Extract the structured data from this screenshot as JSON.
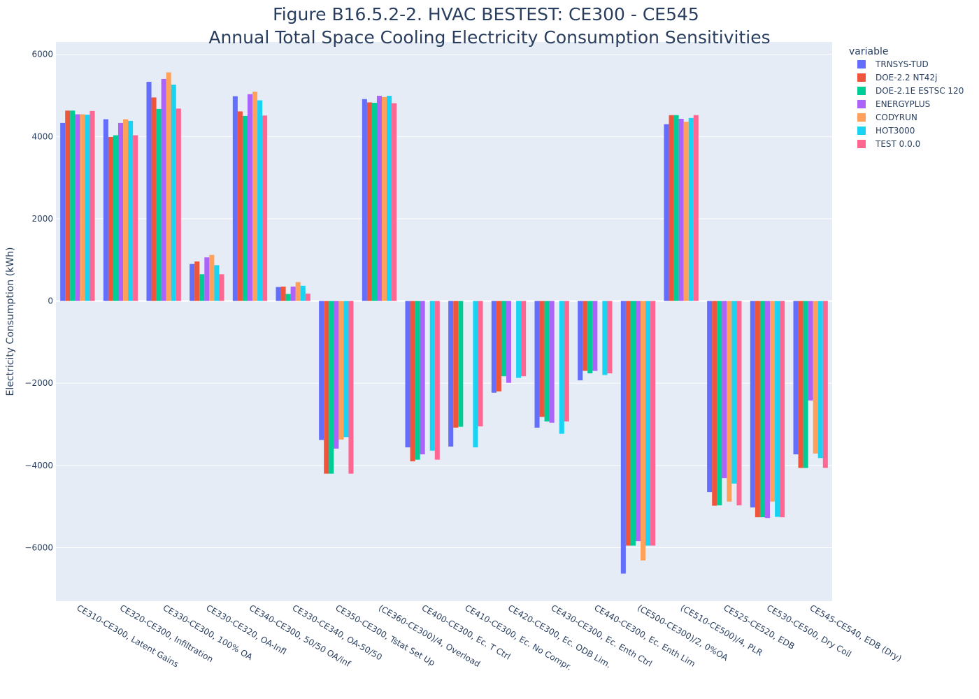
{
  "chart_data": {
    "type": "bar",
    "title": "Figure B16.5.2-2. HVAC BESTEST: CE300 - CE545",
    "subtitle": "Annual Total Space Cooling Electricity Consumption Sensitivities",
    "ylabel": "Electricity Consumption (kWh)",
    "xlabel": "",
    "ylim": [
      -7300,
      6300
    ],
    "yticks": [
      -6000,
      -4000,
      -2000,
      0,
      2000,
      4000,
      6000
    ],
    "ytick_labels": [
      "−6000",
      "−4000",
      "−2000",
      "0",
      "2000",
      "4000",
      "6000"
    ],
    "grid": true,
    "legend_title": "variable",
    "legend_position": "top-right",
    "categories": [
      "CE310-CE300, Latent Gains",
      "CE320-CE300, Infiltration",
      "CE330-CE300, 100% OA",
      "CE330-CE320, OA-Infl",
      "CE340-CE300, 50/50 OA/inf",
      "CE330-CE340, OA-50/50",
      "CE350-CE300, Tstat Set Up",
      "(CE360-CE300)/4, Overload",
      "CE400-CE300, Ec. T Ctrl",
      "CE410-CE300, Ec. No Compr.",
      "CE420-CE300, Ec. ODB Lim.",
      "CE430-CE300, Ec. Enth Ctrl",
      "CE440-CE300, Ec. Enth Lim",
      "(CE500-CE300)/2, 0%OA",
      "(CE510-CE500)/4, PLR",
      "CE525-CE520, EDB",
      "CE530-CE500, Dry Coil",
      "CE545-CE540, EDB (Dry)"
    ],
    "series": [
      {
        "name": "TRNSYS-TUD",
        "color": "#636efa",
        "values": [
          4330,
          4420,
          5330,
          900,
          4980,
          340,
          -3380,
          4910,
          -3560,
          -3540,
          -2230,
          -3080,
          -1930,
          -6630,
          4300,
          -4650,
          -5020,
          -3730
        ]
      },
      {
        "name": "DOE-2.2 NT42j",
        "color": "#ef553b",
        "values": [
          4630,
          3990,
          4950,
          960,
          4610,
          350,
          -4200,
          4830,
          -3900,
          -3080,
          -2200,
          -2820,
          -1700,
          -5950,
          4520,
          -4980,
          -5260,
          -4060
        ]
      },
      {
        "name": "DOE-2.1E ESTSC 120",
        "color": "#00cc96",
        "values": [
          4630,
          4030,
          4670,
          650,
          4500,
          170,
          -4200,
          4820,
          -3860,
          -3060,
          -1830,
          -2930,
          -1760,
          -5950,
          4520,
          -4970,
          -5260,
          -4060
        ]
      },
      {
        "name": "ENERGYPLUS",
        "color": "#ab63fa",
        "values": [
          4540,
          4330,
          5400,
          1060,
          5030,
          350,
          -3590,
          4990,
          -3730,
          0,
          -1990,
          -2960,
          -1700,
          -5840,
          4430,
          -4310,
          -5280,
          -2420
        ]
      },
      {
        "name": "CODYRUN",
        "color": "#ffa15a",
        "values": [
          4540,
          4420,
          5560,
          1120,
          5090,
          460,
          -3370,
          4960,
          0,
          0,
          0,
          0,
          0,
          -6310,
          4360,
          -4880,
          -4880,
          -3710
        ]
      },
      {
        "name": "HOT3000",
        "color": "#19d3f3",
        "values": [
          4530,
          4380,
          5260,
          870,
          4880,
          370,
          -3310,
          4990,
          -3640,
          -3560,
          -1870,
          -3230,
          -1800,
          -5950,
          4450,
          -4440,
          -5250,
          -3820
        ]
      },
      {
        "name": "TEST 0.0.0",
        "color": "#ff6692",
        "values": [
          4620,
          4030,
          4680,
          650,
          4510,
          180,
          -4200,
          4810,
          -3860,
          -3050,
          -1830,
          -2930,
          -1760,
          -5950,
          4520,
          -4970,
          -5260,
          -4060
        ]
      }
    ]
  }
}
